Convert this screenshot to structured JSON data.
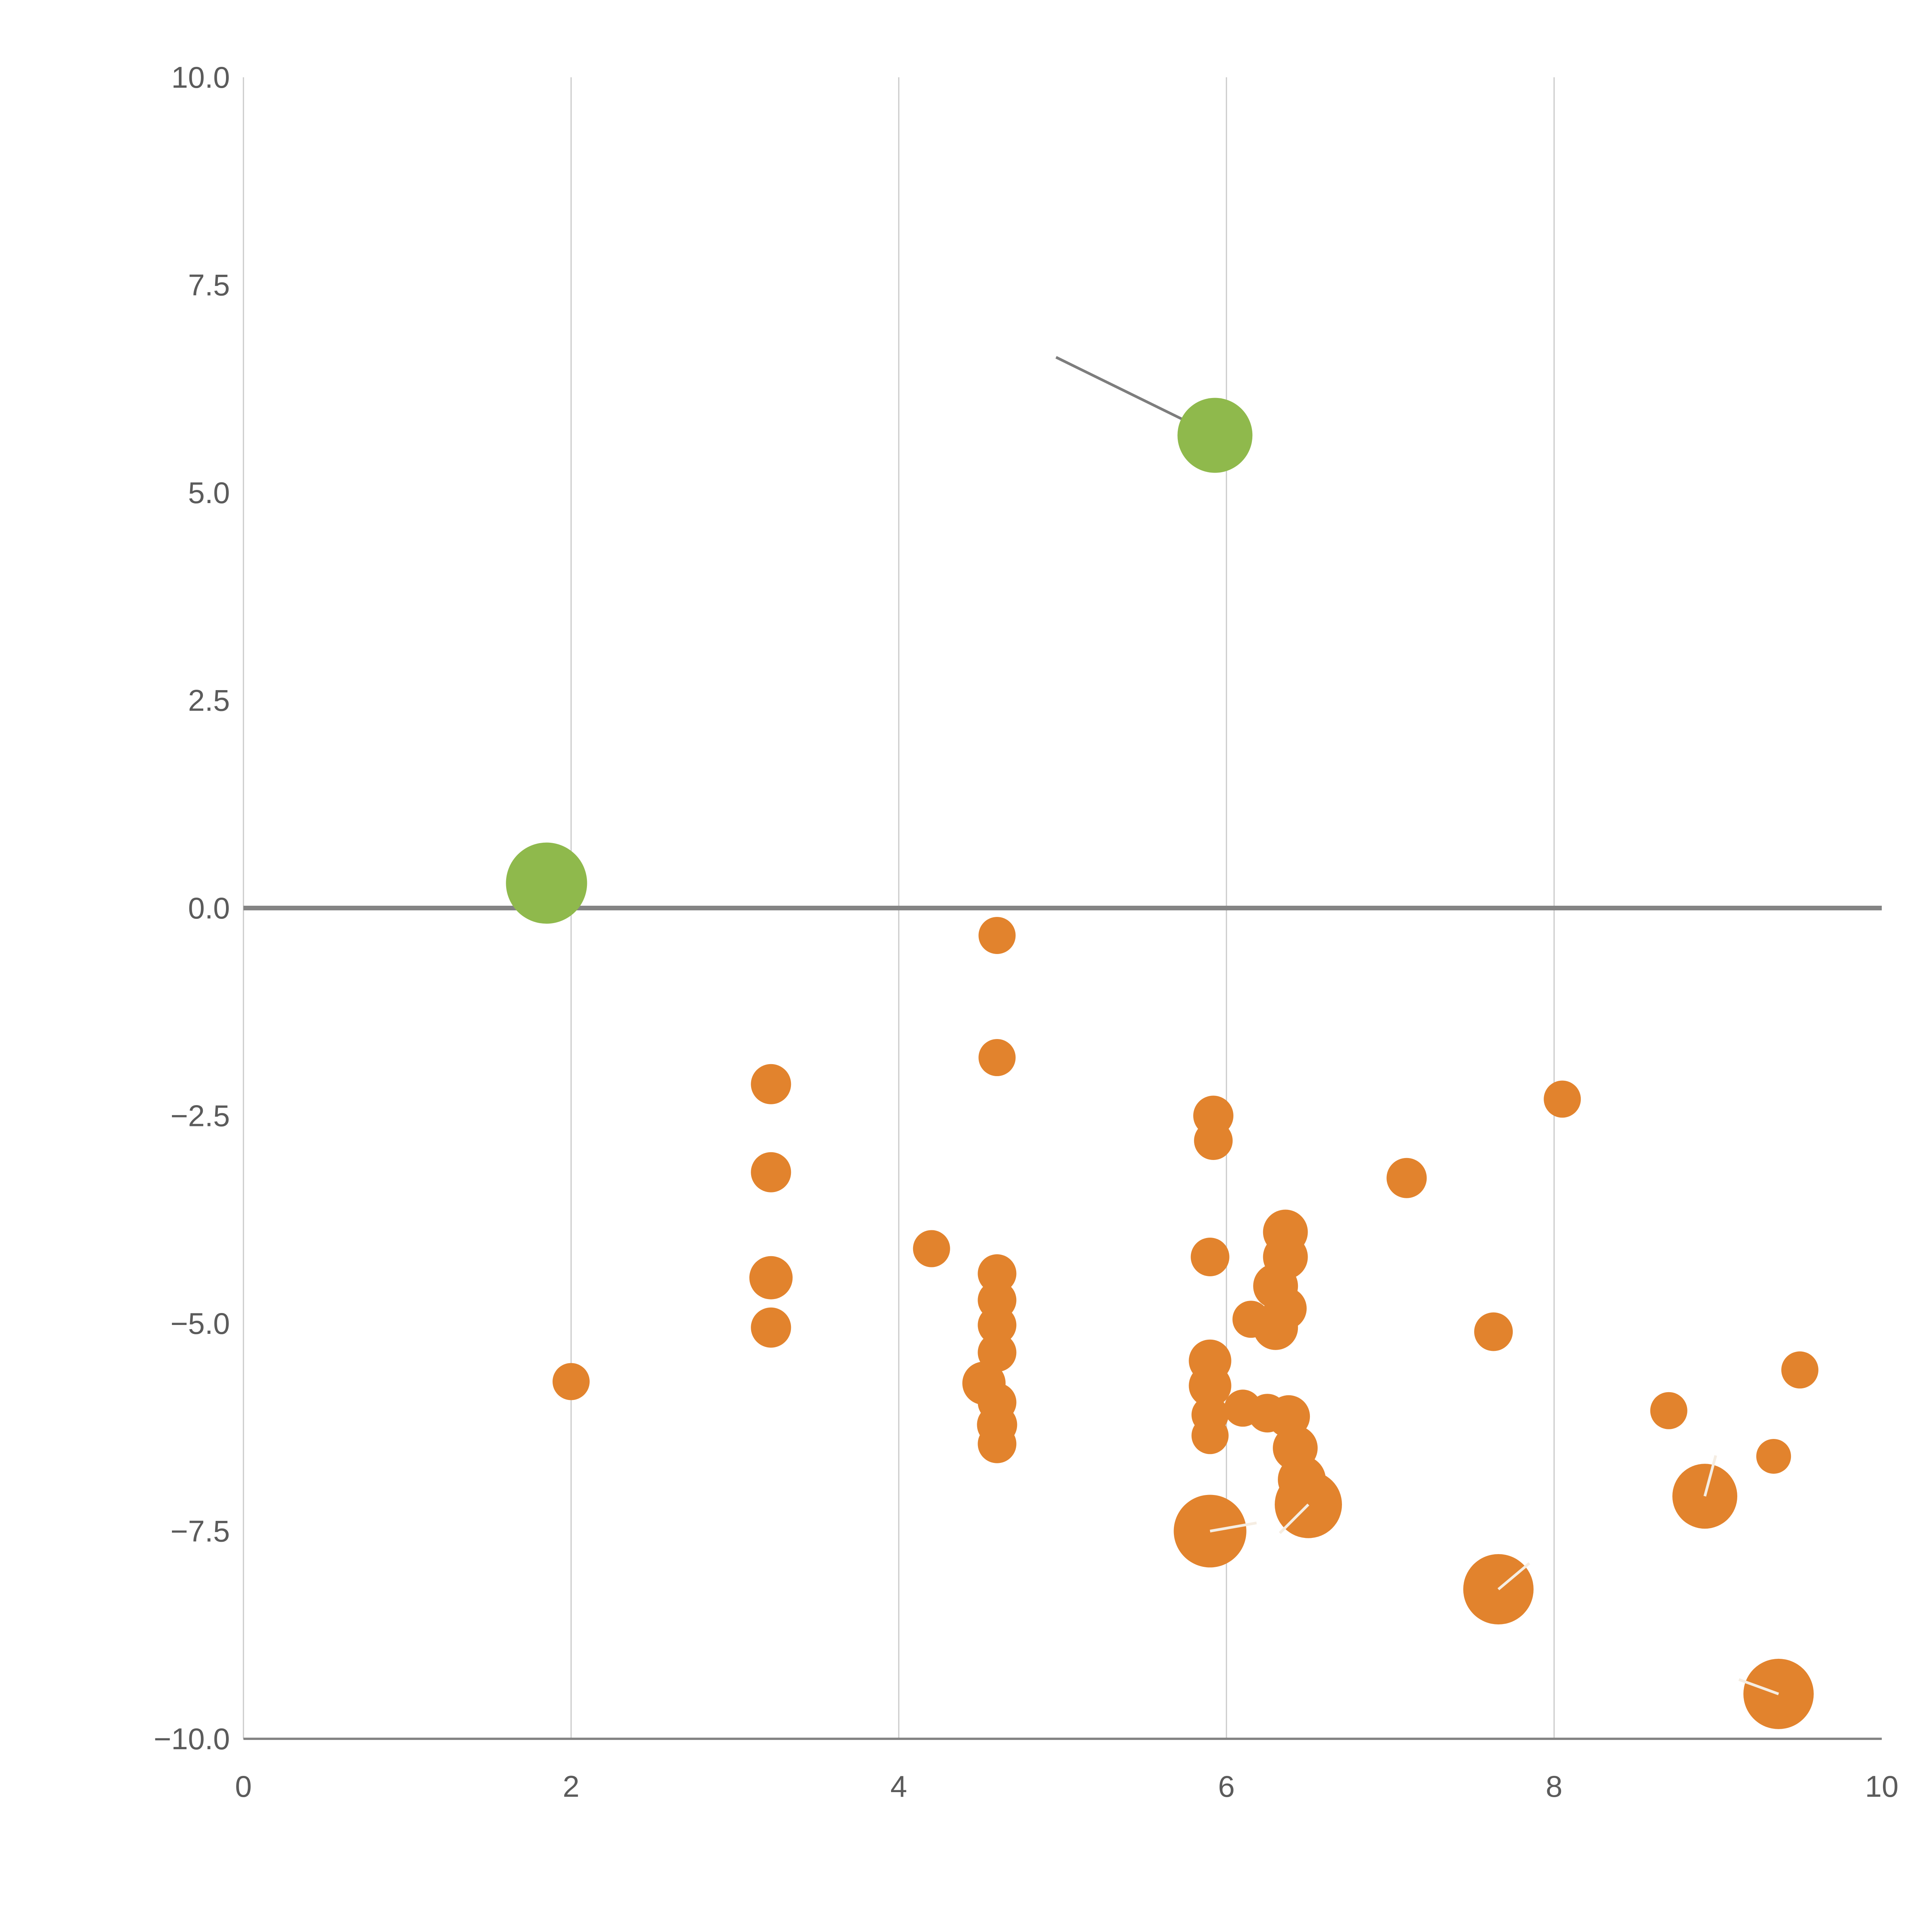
{
  "chart_data": {
    "type": "scatter",
    "title": "",
    "xlabel": "",
    "ylabel": "",
    "xlim": [
      0,
      10
    ],
    "ylim": [
      -10,
      10
    ],
    "x_ticks": [
      0,
      2,
      4,
      6,
      8,
      10
    ],
    "x_tick_labels": [
      "0",
      "2",
      "4",
      "6",
      "8",
      "10"
    ],
    "y_ticks": [
      10.0,
      7.5,
      5.0,
      2.5,
      0.0,
      -2.5,
      -5.0,
      -7.5,
      -10.0
    ],
    "y_tick_labels": [
      "10.0",
      "7.5",
      "5.0",
      "2.5",
      "0.0",
      "−2.5",
      "−5.0",
      "−7.5",
      "−10.0"
    ],
    "grid": {
      "vertical_at": [
        0,
        2,
        4,
        6,
        8
      ],
      "on": true
    },
    "zero_line_y": 0,
    "legend": "none",
    "style": {
      "grid_color": "#c9c9c9",
      "zero_line_color": "#848484",
      "axis_color": "#848484",
      "label_color": "#5b5b5b",
      "needle_color": "#f5ede2",
      "background": "#ffffff"
    },
    "annotations": {
      "lines": [
        {
          "x1": 4.96,
          "y1": 6.63,
          "x2": 5.9,
          "y2": 5.72,
          "color": "#7d7d7d"
        }
      ]
    },
    "series": [
      {
        "name": "orange",
        "color": "#e2832d",
        "points": [
          {
            "x": 4.6,
            "y": -0.33,
            "r": 48
          },
          {
            "x": 4.6,
            "y": -1.8,
            "r": 48
          },
          {
            "x": 3.22,
            "y": -2.12,
            "r": 52
          },
          {
            "x": 3.22,
            "y": -3.18,
            "r": 52
          },
          {
            "x": 3.22,
            "y": -4.45,
            "r": 56
          },
          {
            "x": 3.22,
            "y": -5.05,
            "r": 52
          },
          {
            "x": 4.2,
            "y": -4.1,
            "r": 48
          },
          {
            "x": 4.6,
            "y": -4.4,
            "r": 50
          },
          {
            "x": 4.6,
            "y": -4.72,
            "r": 50
          },
          {
            "x": 4.6,
            "y": -5.02,
            "r": 50
          },
          {
            "x": 4.6,
            "y": -5.35,
            "r": 50
          },
          {
            "x": 4.52,
            "y": -5.72,
            "r": 56
          },
          {
            "x": 4.6,
            "y": -5.95,
            "r": 50
          },
          {
            "x": 4.6,
            "y": -6.22,
            "r": 52
          },
          {
            "x": 4.6,
            "y": -6.45,
            "r": 50
          },
          {
            "x": 2.0,
            "y": -5.7,
            "r": 48
          },
          {
            "x": 5.92,
            "y": -2.5,
            "r": 52
          },
          {
            "x": 5.92,
            "y": -2.8,
            "r": 50
          },
          {
            "x": 5.9,
            "y": -4.2,
            "r": 50
          },
          {
            "x": 6.36,
            "y": -3.9,
            "r": 58
          },
          {
            "x": 6.36,
            "y": -4.2,
            "r": 58
          },
          {
            "x": 6.3,
            "y": -4.55,
            "r": 58
          },
          {
            "x": 6.36,
            "y": -4.82,
            "r": 55
          },
          {
            "x": 6.3,
            "y": -5.05,
            "r": 58
          },
          {
            "x": 6.15,
            "y": -4.95,
            "r": 48
          },
          {
            "x": 5.9,
            "y": -5.45,
            "r": 55
          },
          {
            "x": 5.9,
            "y": -5.75,
            "r": 55
          },
          {
            "x": 5.9,
            "y": -6.1,
            "r": 48
          },
          {
            "x": 5.9,
            "y": -6.35,
            "r": 48
          },
          {
            "x": 6.1,
            "y": -6.02,
            "r": 48
          },
          {
            "x": 6.25,
            "y": -6.08,
            "r": 50
          },
          {
            "x": 6.38,
            "y": -6.12,
            "r": 55
          },
          {
            "x": 6.42,
            "y": -6.5,
            "r": 58
          },
          {
            "x": 6.46,
            "y": -6.88,
            "r": 62
          },
          {
            "x": 6.5,
            "y": -7.18,
            "r": 87,
            "needle": {
              "angle": 225,
              "len": 1.2
            }
          },
          {
            "x": 5.9,
            "y": -7.5,
            "r": 94,
            "needle": {
              "angle": 10,
              "len": 1.3
            }
          },
          {
            "x": 7.1,
            "y": -3.25,
            "r": 52
          },
          {
            "x": 7.63,
            "y": -5.1,
            "r": 50
          },
          {
            "x": 8.05,
            "y": -2.3,
            "r": 48
          },
          {
            "x": 7.66,
            "y": -8.2,
            "r": 91,
            "needle": {
              "angle": 40,
              "len": 1.15
            }
          },
          {
            "x": 8.7,
            "y": -6.05,
            "r": 48
          },
          {
            "x": 8.92,
            "y": -7.08,
            "r": 84,
            "needle": {
              "angle": 75,
              "len": 1.3
            }
          },
          {
            "x": 9.34,
            "y": -6.6,
            "r": 45
          },
          {
            "x": 9.5,
            "y": -5.56,
            "r": 48
          },
          {
            "x": 9.37,
            "y": -9.46,
            "r": 91,
            "needle": {
              "angle": 160,
              "len": 1.2
            }
          }
        ]
      },
      {
        "name": "green",
        "color": "#8fb94c",
        "points": [
          {
            "x": 1.85,
            "y": 0.3,
            "r": 105
          },
          {
            "x": 5.93,
            "y": 5.69,
            "r": 97
          }
        ]
      }
    ]
  }
}
